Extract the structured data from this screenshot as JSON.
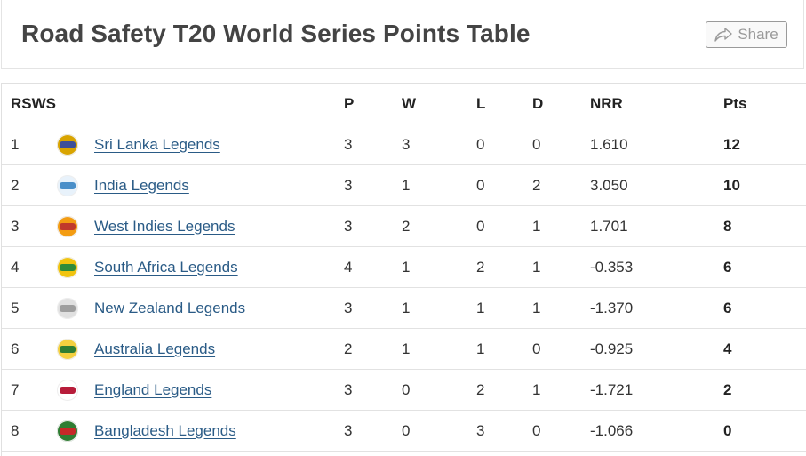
{
  "header": {
    "title": "Road Safety T20 World Series Points Table",
    "share_label": "Share"
  },
  "table": {
    "columns": {
      "pos": "RSWS",
      "team": "",
      "p": "P",
      "w": "W",
      "l": "L",
      "d": "D",
      "nrr": "NRR",
      "pts": "Pts"
    },
    "rows": [
      {
        "pos": "1",
        "team": "Sri Lanka Legends",
        "p": "3",
        "w": "3",
        "l": "0",
        "d": "0",
        "nrr": "1.610",
        "pts": "12",
        "logo_color": "#3d4f9a",
        "logo_accent": "#d9a400"
      },
      {
        "pos": "2",
        "team": "India Legends",
        "p": "3",
        "w": "1",
        "l": "0",
        "d": "2",
        "nrr": "3.050",
        "pts": "10",
        "logo_color": "#4a8fc9",
        "logo_accent": "#e8f2fb"
      },
      {
        "pos": "3",
        "team": "West Indies Legends",
        "p": "3",
        "w": "2",
        "l": "0",
        "d": "1",
        "nrr": "1.701",
        "pts": "8",
        "logo_color": "#c0392b",
        "logo_accent": "#f39c12"
      },
      {
        "pos": "4",
        "team": "South Africa Legends",
        "p": "4",
        "w": "1",
        "l": "2",
        "d": "1",
        "nrr": "-0.353",
        "pts": "6",
        "logo_color": "#2e8b3a",
        "logo_accent": "#f1c40f"
      },
      {
        "pos": "5",
        "team": "New Zealand Legends",
        "p": "3",
        "w": "1",
        "l": "1",
        "d": "1",
        "nrr": "-1.370",
        "pts": "6",
        "logo_color": "#9e9e9e",
        "logo_accent": "#e0e0e0"
      },
      {
        "pos": "6",
        "team": "Australia Legends",
        "p": "2",
        "w": "1",
        "l": "1",
        "d": "0",
        "nrr": "-0.925",
        "pts": "4",
        "logo_color": "#2f7d32",
        "logo_accent": "#f4d03f"
      },
      {
        "pos": "7",
        "team": "England Legends",
        "p": "3",
        "w": "0",
        "l": "2",
        "d": "1",
        "nrr": "-1.721",
        "pts": "2",
        "logo_color": "#b71c3a",
        "logo_accent": "#ffffff"
      },
      {
        "pos": "8",
        "team": "Bangladesh Legends",
        "p": "3",
        "w": "0",
        "l": "3",
        "d": "0",
        "nrr": "-1.066",
        "pts": "0",
        "logo_color": "#c62828",
        "logo_accent": "#2e7d32"
      }
    ]
  },
  "colors": {
    "link": "#2a5b86",
    "title": "#444444",
    "border": "#e2e2e2"
  },
  "icons": {
    "share": "share-arrow-icon",
    "team_logo": "team-logo-icon"
  }
}
